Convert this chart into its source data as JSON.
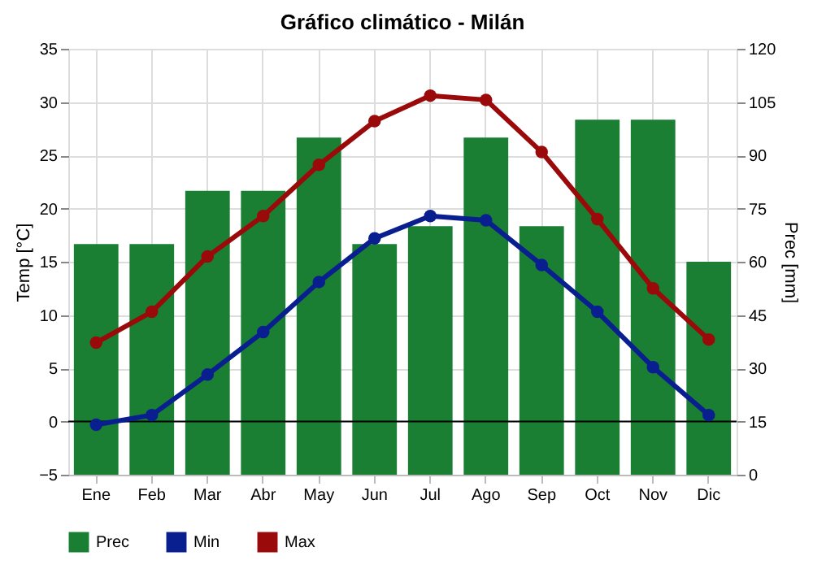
{
  "chart_data": {
    "type": "line",
    "title": "Gráfico climático - Milán",
    "ylabel": "Temp [°C]",
    "y2label": "Prec [mm]",
    "categories": [
      "Ene",
      "Feb",
      "Mar",
      "Abr",
      "May",
      "Jun",
      "Jul",
      "Ago",
      "Sep",
      "Oct",
      "Nov",
      "Dic"
    ],
    "series": [
      {
        "name": "Prec",
        "type": "bar",
        "axis": "y2",
        "color": "#1a7f32",
        "values": [
          65,
          65,
          80,
          80,
          95,
          65,
          70,
          95,
          70,
          100,
          100,
          60
        ]
      },
      {
        "name": "Min",
        "color": "#0a1f8f",
        "values": [
          -0.3,
          0.6,
          4.4,
          8.4,
          13.1,
          17.2,
          19.3,
          18.9,
          14.7,
          10.3,
          5.1,
          0.6
        ]
      },
      {
        "name": "Max",
        "color": "#9b0a0a",
        "values": [
          7.4,
          10.3,
          15.5,
          19.3,
          24.1,
          28.2,
          30.6,
          30.2,
          25.3,
          19.0,
          12.5,
          7.7
        ]
      }
    ],
    "ylim": [
      -5,
      35
    ],
    "yticks": [
      -5,
      0,
      5,
      10,
      15,
      20,
      25,
      30,
      35
    ],
    "y2lim": [
      0,
      120
    ],
    "y2ticks": [
      0,
      15,
      30,
      45,
      60,
      75,
      90,
      105,
      120
    ],
    "ref_lines": [
      {
        "axis": "y",
        "value": 0,
        "color": "#000000"
      }
    ],
    "grid": true,
    "legend": "bottom",
    "marker": "circle"
  }
}
